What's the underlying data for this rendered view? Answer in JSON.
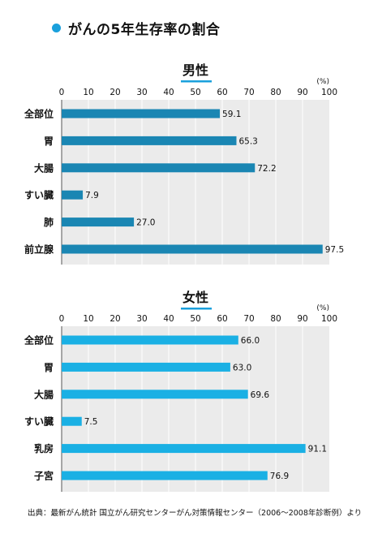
{
  "header": {
    "title": "がんの5年生存率の割合"
  },
  "colors": {
    "male": "#1a86b3",
    "female": "#1ab0e4",
    "dot": "#1aa0dc",
    "underline": "#1aa0dc",
    "plot_bg": "#ebebeb",
    "grid": "#ffffff"
  },
  "chart_data": [
    {
      "type": "bar",
      "orientation": "horizontal",
      "title": "男性",
      "unit": "(%)",
      "xlim": [
        0,
        100
      ],
      "ticks": [
        "0",
        "10",
        "20",
        "30",
        "40",
        "50",
        "60",
        "70",
        "80",
        "90",
        "100"
      ],
      "categories": [
        "全部位",
        "胃",
        "大腸",
        "すい臓",
        "肺",
        "前立腺"
      ],
      "values": [
        59.1,
        65.3,
        72.2,
        7.9,
        27.0,
        97.5
      ],
      "labels": [
        "59.1",
        "65.3",
        "72.2",
        "7.9",
        "27.0",
        "97.5"
      ],
      "grid": true
    },
    {
      "type": "bar",
      "orientation": "horizontal",
      "title": "女性",
      "unit": "(%)",
      "xlim": [
        0,
        100
      ],
      "ticks": [
        "0",
        "10",
        "20",
        "30",
        "40",
        "50",
        "60",
        "70",
        "80",
        "90",
        "100"
      ],
      "categories": [
        "全部位",
        "胃",
        "大腸",
        "すい臓",
        "乳房",
        "子宮"
      ],
      "values": [
        66.0,
        63.0,
        69.6,
        7.5,
        91.1,
        76.9
      ],
      "labels": [
        "66.0",
        "63.0",
        "69.6",
        "7.5",
        "91.1",
        "76.9"
      ],
      "grid": true
    }
  ],
  "footer": {
    "source": "出典：最新がん統計 国立がん研究センターがん対策情報センター（2006〜2008年診断例）より"
  }
}
